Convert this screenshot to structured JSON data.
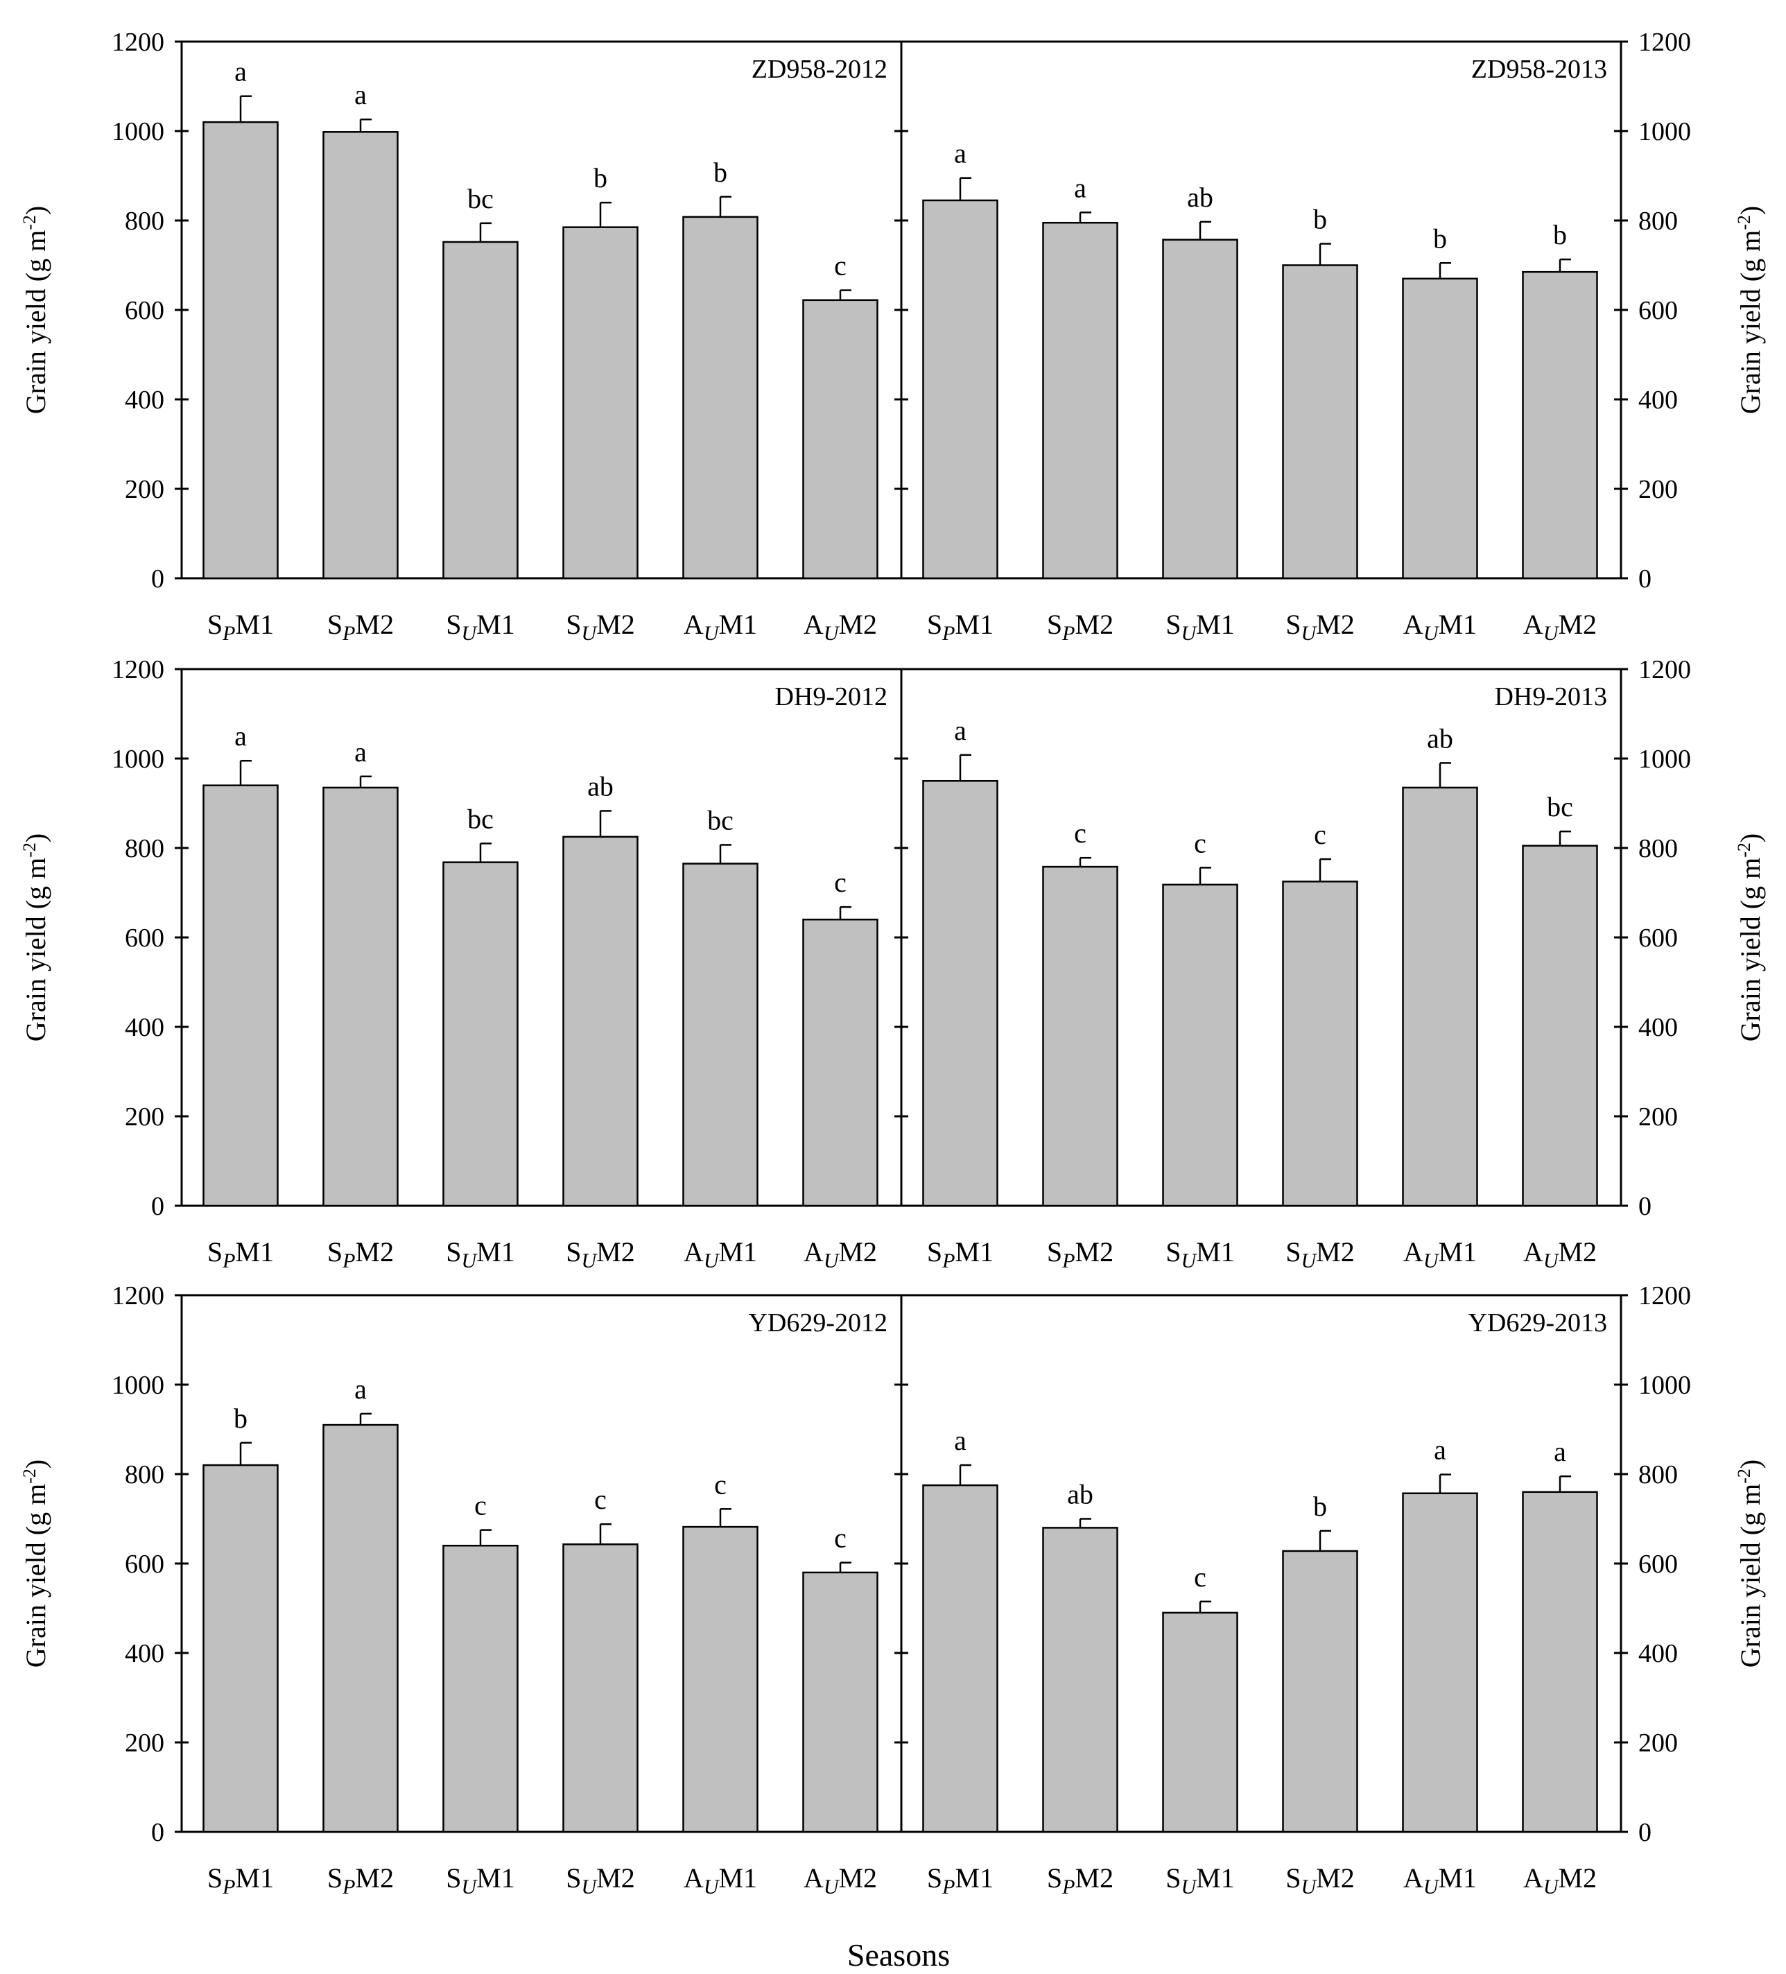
{
  "figure": {
    "xlabel": "Seasons",
    "ylabel": "Grain yield (g m",
    "ylabel_sup": "-2",
    "ylabel_end": ")"
  },
  "chart_data": [
    {
      "type": "bar",
      "title": "ZD958-2012",
      "ylim": [
        0,
        1200
      ],
      "yticks": [
        0,
        200,
        400,
        600,
        800,
        1000,
        1200
      ],
      "categories": [
        [
          "S",
          "P",
          "M1"
        ],
        [
          "S",
          "P",
          "M2"
        ],
        [
          "S",
          "U",
          "M1"
        ],
        [
          "S",
          "U",
          "M2"
        ],
        [
          "A",
          "U",
          "M1"
        ],
        [
          "A",
          "U",
          "M2"
        ]
      ],
      "values": [
        1020,
        998,
        752,
        785,
        808,
        622
      ],
      "errors": [
        58,
        28,
        42,
        55,
        45,
        22
      ],
      "letters": [
        "a",
        "a",
        "bc",
        "b",
        "b",
        "c"
      ]
    },
    {
      "type": "bar",
      "title": "ZD958-2013",
      "ylim": [
        0,
        1200
      ],
      "yticks": [
        0,
        200,
        400,
        600,
        800,
        1000,
        1200
      ],
      "categories": [
        [
          "S",
          "P",
          "M1"
        ],
        [
          "S",
          "P",
          "M2"
        ],
        [
          "S",
          "U",
          "M1"
        ],
        [
          "S",
          "U",
          "M2"
        ],
        [
          "A",
          "U",
          "M1"
        ],
        [
          "A",
          "U",
          "M2"
        ]
      ],
      "values": [
        845,
        795,
        757,
        700,
        670,
        685
      ],
      "errors": [
        50,
        23,
        40,
        48,
        35,
        28
      ],
      "letters": [
        "a",
        "a",
        "ab",
        "b",
        "b",
        "b"
      ]
    },
    {
      "type": "bar",
      "title": "DH9-2012",
      "ylim": [
        0,
        1200
      ],
      "yticks": [
        0,
        200,
        400,
        600,
        800,
        1000,
        1200
      ],
      "categories": [
        [
          "S",
          "P",
          "M1"
        ],
        [
          "S",
          "P",
          "M2"
        ],
        [
          "S",
          "U",
          "M1"
        ],
        [
          "S",
          "U",
          "M2"
        ],
        [
          "A",
          "U",
          "M1"
        ],
        [
          "A",
          "U",
          "M2"
        ]
      ],
      "values": [
        940,
        935,
        768,
        825,
        765,
        640
      ],
      "errors": [
        55,
        25,
        42,
        58,
        42,
        28
      ],
      "letters": [
        "a",
        "a",
        "bc",
        "ab",
        "bc",
        "c"
      ]
    },
    {
      "type": "bar",
      "title": "DH9-2013",
      "ylim": [
        0,
        1200
      ],
      "yticks": [
        0,
        200,
        400,
        600,
        800,
        1000,
        1200
      ],
      "categories": [
        [
          "S",
          "P",
          "M1"
        ],
        [
          "S",
          "P",
          "M2"
        ],
        [
          "S",
          "U",
          "M1"
        ],
        [
          "S",
          "U",
          "M2"
        ],
        [
          "A",
          "U",
          "M1"
        ],
        [
          "A",
          "U",
          "M2"
        ]
      ],
      "values": [
        950,
        758,
        718,
        725,
        935,
        805
      ],
      "errors": [
        58,
        20,
        38,
        50,
        55,
        32
      ],
      "letters": [
        "a",
        "c",
        "c",
        "c",
        "ab",
        "bc"
      ]
    },
    {
      "type": "bar",
      "title": "YD629-2012",
      "ylim": [
        0,
        1200
      ],
      "yticks": [
        0,
        200,
        400,
        600,
        800,
        1000,
        1200
      ],
      "categories": [
        [
          "S",
          "P",
          "M1"
        ],
        [
          "S",
          "P",
          "M2"
        ],
        [
          "S",
          "U",
          "M1"
        ],
        [
          "S",
          "U",
          "M2"
        ],
        [
          "A",
          "U",
          "M1"
        ],
        [
          "A",
          "U",
          "M2"
        ]
      ],
      "values": [
        820,
        910,
        640,
        643,
        682,
        580
      ],
      "errors": [
        50,
        25,
        35,
        45,
        40,
        22
      ],
      "letters": [
        "b",
        "a",
        "c",
        "c",
        "c",
        "c"
      ]
    },
    {
      "type": "bar",
      "title": "YD629-2013",
      "ylim": [
        0,
        1200
      ],
      "yticks": [
        0,
        200,
        400,
        600,
        800,
        1000,
        1200
      ],
      "categories": [
        [
          "S",
          "P",
          "M1"
        ],
        [
          "S",
          "P",
          "M2"
        ],
        [
          "S",
          "U",
          "M1"
        ],
        [
          "S",
          "U",
          "M2"
        ],
        [
          "A",
          "U",
          "M1"
        ],
        [
          "A",
          "U",
          "M2"
        ]
      ],
      "values": [
        775,
        680,
        490,
        628,
        757,
        760
      ],
      "errors": [
        45,
        20,
        25,
        45,
        42,
        35
      ],
      "letters": [
        "a",
        "ab",
        "c",
        "b",
        "a",
        "a"
      ]
    }
  ]
}
